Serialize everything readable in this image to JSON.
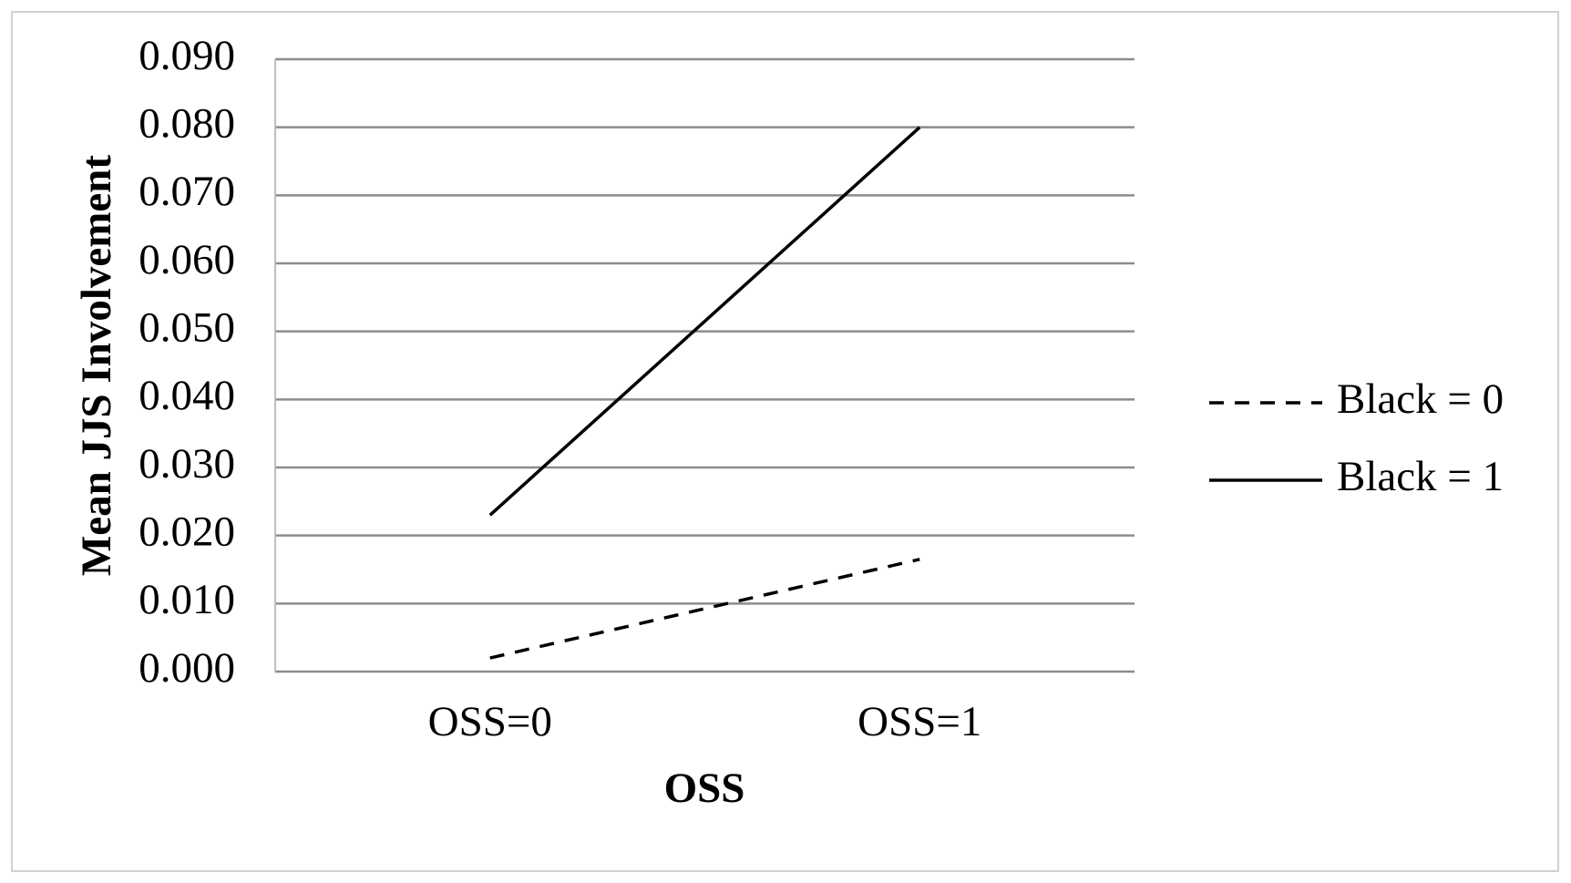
{
  "chart_data": {
    "type": "line",
    "x_label": "OSS",
    "y_label": "Mean JJS Involvement",
    "categories": [
      "OSS=0",
      "OSS=1"
    ],
    "series": [
      {
        "name": "Black = 0",
        "color": "#000000",
        "line_style": "dashed",
        "values": [
          0.002,
          0.0165
        ]
      },
      {
        "name": "Black = 1",
        "color": "#000000",
        "line_style": "solid",
        "values": [
          0.023,
          0.08
        ]
      }
    ],
    "ylim": [
      0,
      0.09
    ],
    "yticks": [
      {
        "value": 0,
        "label": "0.000"
      },
      {
        "value": 0.01,
        "label": "0.010"
      },
      {
        "value": 0.02,
        "label": "0.020"
      },
      {
        "value": 0.03,
        "label": "0.030"
      },
      {
        "value": 0.04,
        "label": "0.040"
      },
      {
        "value": 0.05,
        "label": "0.050"
      },
      {
        "value": 0.06,
        "label": "0.060"
      },
      {
        "value": 0.07,
        "label": "0.070"
      },
      {
        "value": 0.08,
        "label": "0.080"
      },
      {
        "value": 0.09,
        "label": "0.090"
      }
    ],
    "grid": true,
    "legend": "right"
  }
}
